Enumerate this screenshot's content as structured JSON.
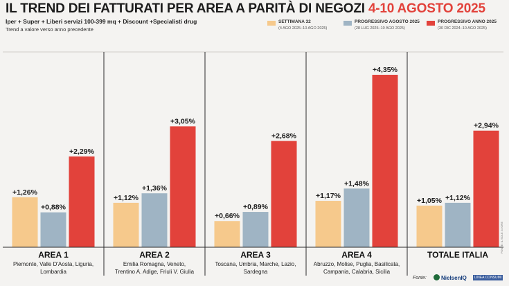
{
  "header": {
    "title_main": "IL TREND DEI FATTURATI PER AREA A PARITÀ DI NEGOZI",
    "title_period": "4-10 AGOSTO 2025",
    "subtitle": "Iper + Super + Liberi servizi 100-399 mq + Discount +Specialisti drug",
    "note": "Trend a valore verso anno precedente"
  },
  "legend": [
    {
      "name": "SETTIMANA 32",
      "sub": "(4 AGO 2025–10 AGO 2025)",
      "color": "#f6c98c"
    },
    {
      "name": "PROGRESSIVO AGOSTO 2025",
      "sub": "(28 LUG 2025–10 AGO 2025)",
      "color": "#9fb4c4"
    },
    {
      "name": "PROGRESSIVO ANNO 2025",
      "sub": "(30 DIC 2024–10 AGO 2025)",
      "color": "#e2423b"
    }
  ],
  "chart_data": {
    "type": "bar",
    "unit": "%",
    "categories": [
      "AREA 1",
      "AREA 2",
      "AREA 3",
      "AREA 4",
      "TOTALE ITALIA"
    ],
    "category_regions": [
      [
        "Piemonte, Valle D'Aosta, Liguria,",
        "Lombardia"
      ],
      [
        "Emilia Romagna, Veneto,",
        "Trentino A. Adige, Friuli V. Giulia"
      ],
      [
        "Toscana, Umbria, Marche, Lazio,",
        "Sardegna"
      ],
      [
        "Abruzzo, Molise, Puglia, Basilicata,",
        "Campania, Calabria, Sicilia"
      ],
      []
    ],
    "series": [
      {
        "name": "SETTIMANA 32",
        "color": "#f6c98c",
        "values": [
          1.26,
          1.12,
          0.66,
          1.17,
          1.05
        ],
        "labels": [
          "+1,26%",
          "+1,12%",
          "+0,66%",
          "+1,17%",
          "+1,05%"
        ]
      },
      {
        "name": "PROGRESSIVO AGOSTO 2025",
        "color": "#9fb4c4",
        "values": [
          0.88,
          1.36,
          0.89,
          1.48,
          1.12
        ],
        "labels": [
          "+0,88%",
          "+1,36%",
          "+0,89%",
          "+1,48%",
          "+1,12%"
        ]
      },
      {
        "name": "PROGRESSIVO ANNO 2025",
        "color": "#e2423b",
        "values": [
          2.29,
          3.05,
          2.68,
          4.35,
          2.94
        ],
        "labels": [
          "+2,29%",
          "+3,05%",
          "+2,68%",
          "+4,35%",
          "+2,94%"
        ]
      }
    ],
    "ylim": [
      0,
      4.35
    ],
    "grid": false
  },
  "footer": {
    "source_label": "Fonte:",
    "source_name": "NielsenIQ",
    "source_partner": "LINEA CONSUMI",
    "credit": "FONTE: IL SOLE 24 ORE"
  }
}
